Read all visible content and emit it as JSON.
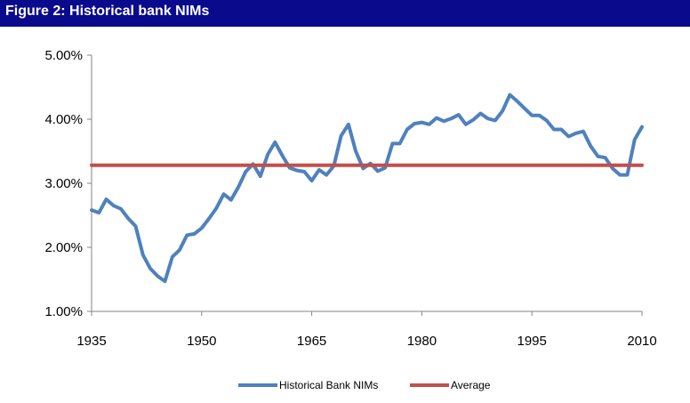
{
  "figure": {
    "title": "Figure 2: Historical bank NIMs"
  },
  "colors": {
    "header_bg": "#0a0a8c",
    "series_nims": "#4f81bd",
    "series_average": "#c0504d",
    "axis": "#868686"
  },
  "chart_data": {
    "type": "line",
    "title": "",
    "xlabel": "",
    "ylabel": "",
    "xlim": [
      1935,
      2010
    ],
    "ylim": [
      0.01,
      0.05
    ],
    "x_ticks": [
      "1935",
      "1950",
      "1965",
      "1980",
      "1995",
      "2010"
    ],
    "y_ticks": [
      "5.00%",
      "4.00%",
      "3.00%",
      "2.00%",
      "1.00%"
    ],
    "grid": false,
    "legend_position": "bottom",
    "series": [
      {
        "name": "Historical Bank NIMs",
        "color": "#4f81bd",
        "x": [
          1935,
          1936,
          1937,
          1938,
          1939,
          1940,
          1941,
          1942,
          1943,
          1944,
          1945,
          1946,
          1947,
          1948,
          1949,
          1950,
          1951,
          1952,
          1953,
          1954,
          1955,
          1956,
          1957,
          1958,
          1959,
          1960,
          1961,
          1962,
          1963,
          1964,
          1965,
          1966,
          1967,
          1968,
          1969,
          1970,
          1971,
          1972,
          1973,
          1974,
          1975,
          1976,
          1977,
          1978,
          1979,
          1980,
          1981,
          1982,
          1983,
          1984,
          1985,
          1986,
          1987,
          1988,
          1989,
          1990,
          1991,
          1992,
          1993,
          1994,
          1995,
          1996,
          1997,
          1998,
          1999,
          2000,
          2001,
          2002,
          2003,
          2004,
          2005,
          2006,
          2007,
          2008,
          2009,
          2010
        ],
        "values": [
          0.0258,
          0.0254,
          0.0275,
          0.0265,
          0.026,
          0.0245,
          0.0233,
          0.0188,
          0.0167,
          0.0155,
          0.0147,
          0.0185,
          0.0196,
          0.0219,
          0.0221,
          0.023,
          0.0245,
          0.0261,
          0.0283,
          0.0274,
          0.0294,
          0.0318,
          0.033,
          0.0311,
          0.0345,
          0.0364,
          0.0343,
          0.0324,
          0.032,
          0.0318,
          0.0304,
          0.0321,
          0.0313,
          0.0327,
          0.0374,
          0.0392,
          0.035,
          0.0323,
          0.0331,
          0.0319,
          0.0324,
          0.0362,
          0.0362,
          0.0384,
          0.0393,
          0.0395,
          0.0392,
          0.0402,
          0.0397,
          0.0401,
          0.0407,
          0.0392,
          0.0399,
          0.0409,
          0.0401,
          0.0398,
          0.0413,
          0.0438,
          0.0428,
          0.0417,
          0.0406,
          0.0406,
          0.0398,
          0.0384,
          0.0384,
          0.0373,
          0.0378,
          0.0381,
          0.0358,
          0.0342,
          0.034,
          0.0323,
          0.0313,
          0.0313,
          0.0368,
          0.0388
        ]
      },
      {
        "name": "Average",
        "color": "#c0504d",
        "x": [
          1935,
          2010
        ],
        "values": [
          0.0328,
          0.0328
        ]
      }
    ]
  }
}
